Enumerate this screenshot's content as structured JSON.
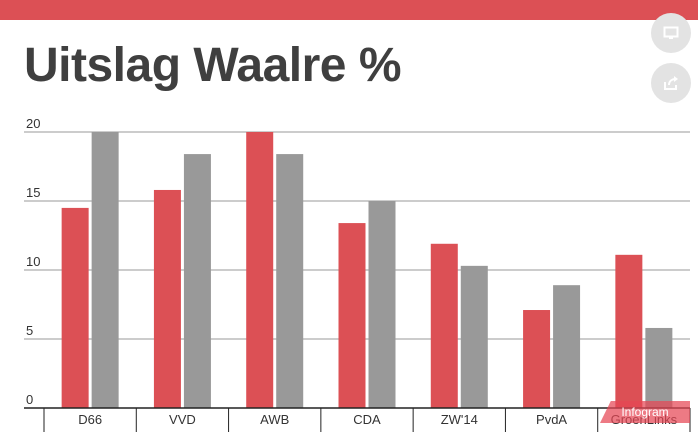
{
  "title": "Uitslag Waalre %",
  "icons": {
    "present": "monitor-icon",
    "share": "share-icon"
  },
  "badge_label": "Infogram",
  "colors": {
    "accent": "#dc5055",
    "series_a": "#dc5055",
    "series_b": "#999999",
    "title_text": "#3f3f3f",
    "grid": "#9a9a9a"
  },
  "chart_data": {
    "type": "bar",
    "categories": [
      "D66",
      "VVD",
      "AWB",
      "CDA",
      "ZW'14",
      "PvdA",
      "GroenLinks"
    ],
    "series": [
      {
        "values": [
          14.5,
          15.8,
          20.0,
          13.4,
          11.9,
          7.1,
          11.1
        ]
      },
      {
        "values": [
          20.0,
          18.4,
          18.4,
          15.0,
          10.3,
          8.9,
          5.8
        ]
      }
    ],
    "yticks": [
      0,
      5,
      10,
      15,
      20
    ],
    "ylim": [
      0,
      20
    ],
    "grid": true,
    "legend": false
  }
}
